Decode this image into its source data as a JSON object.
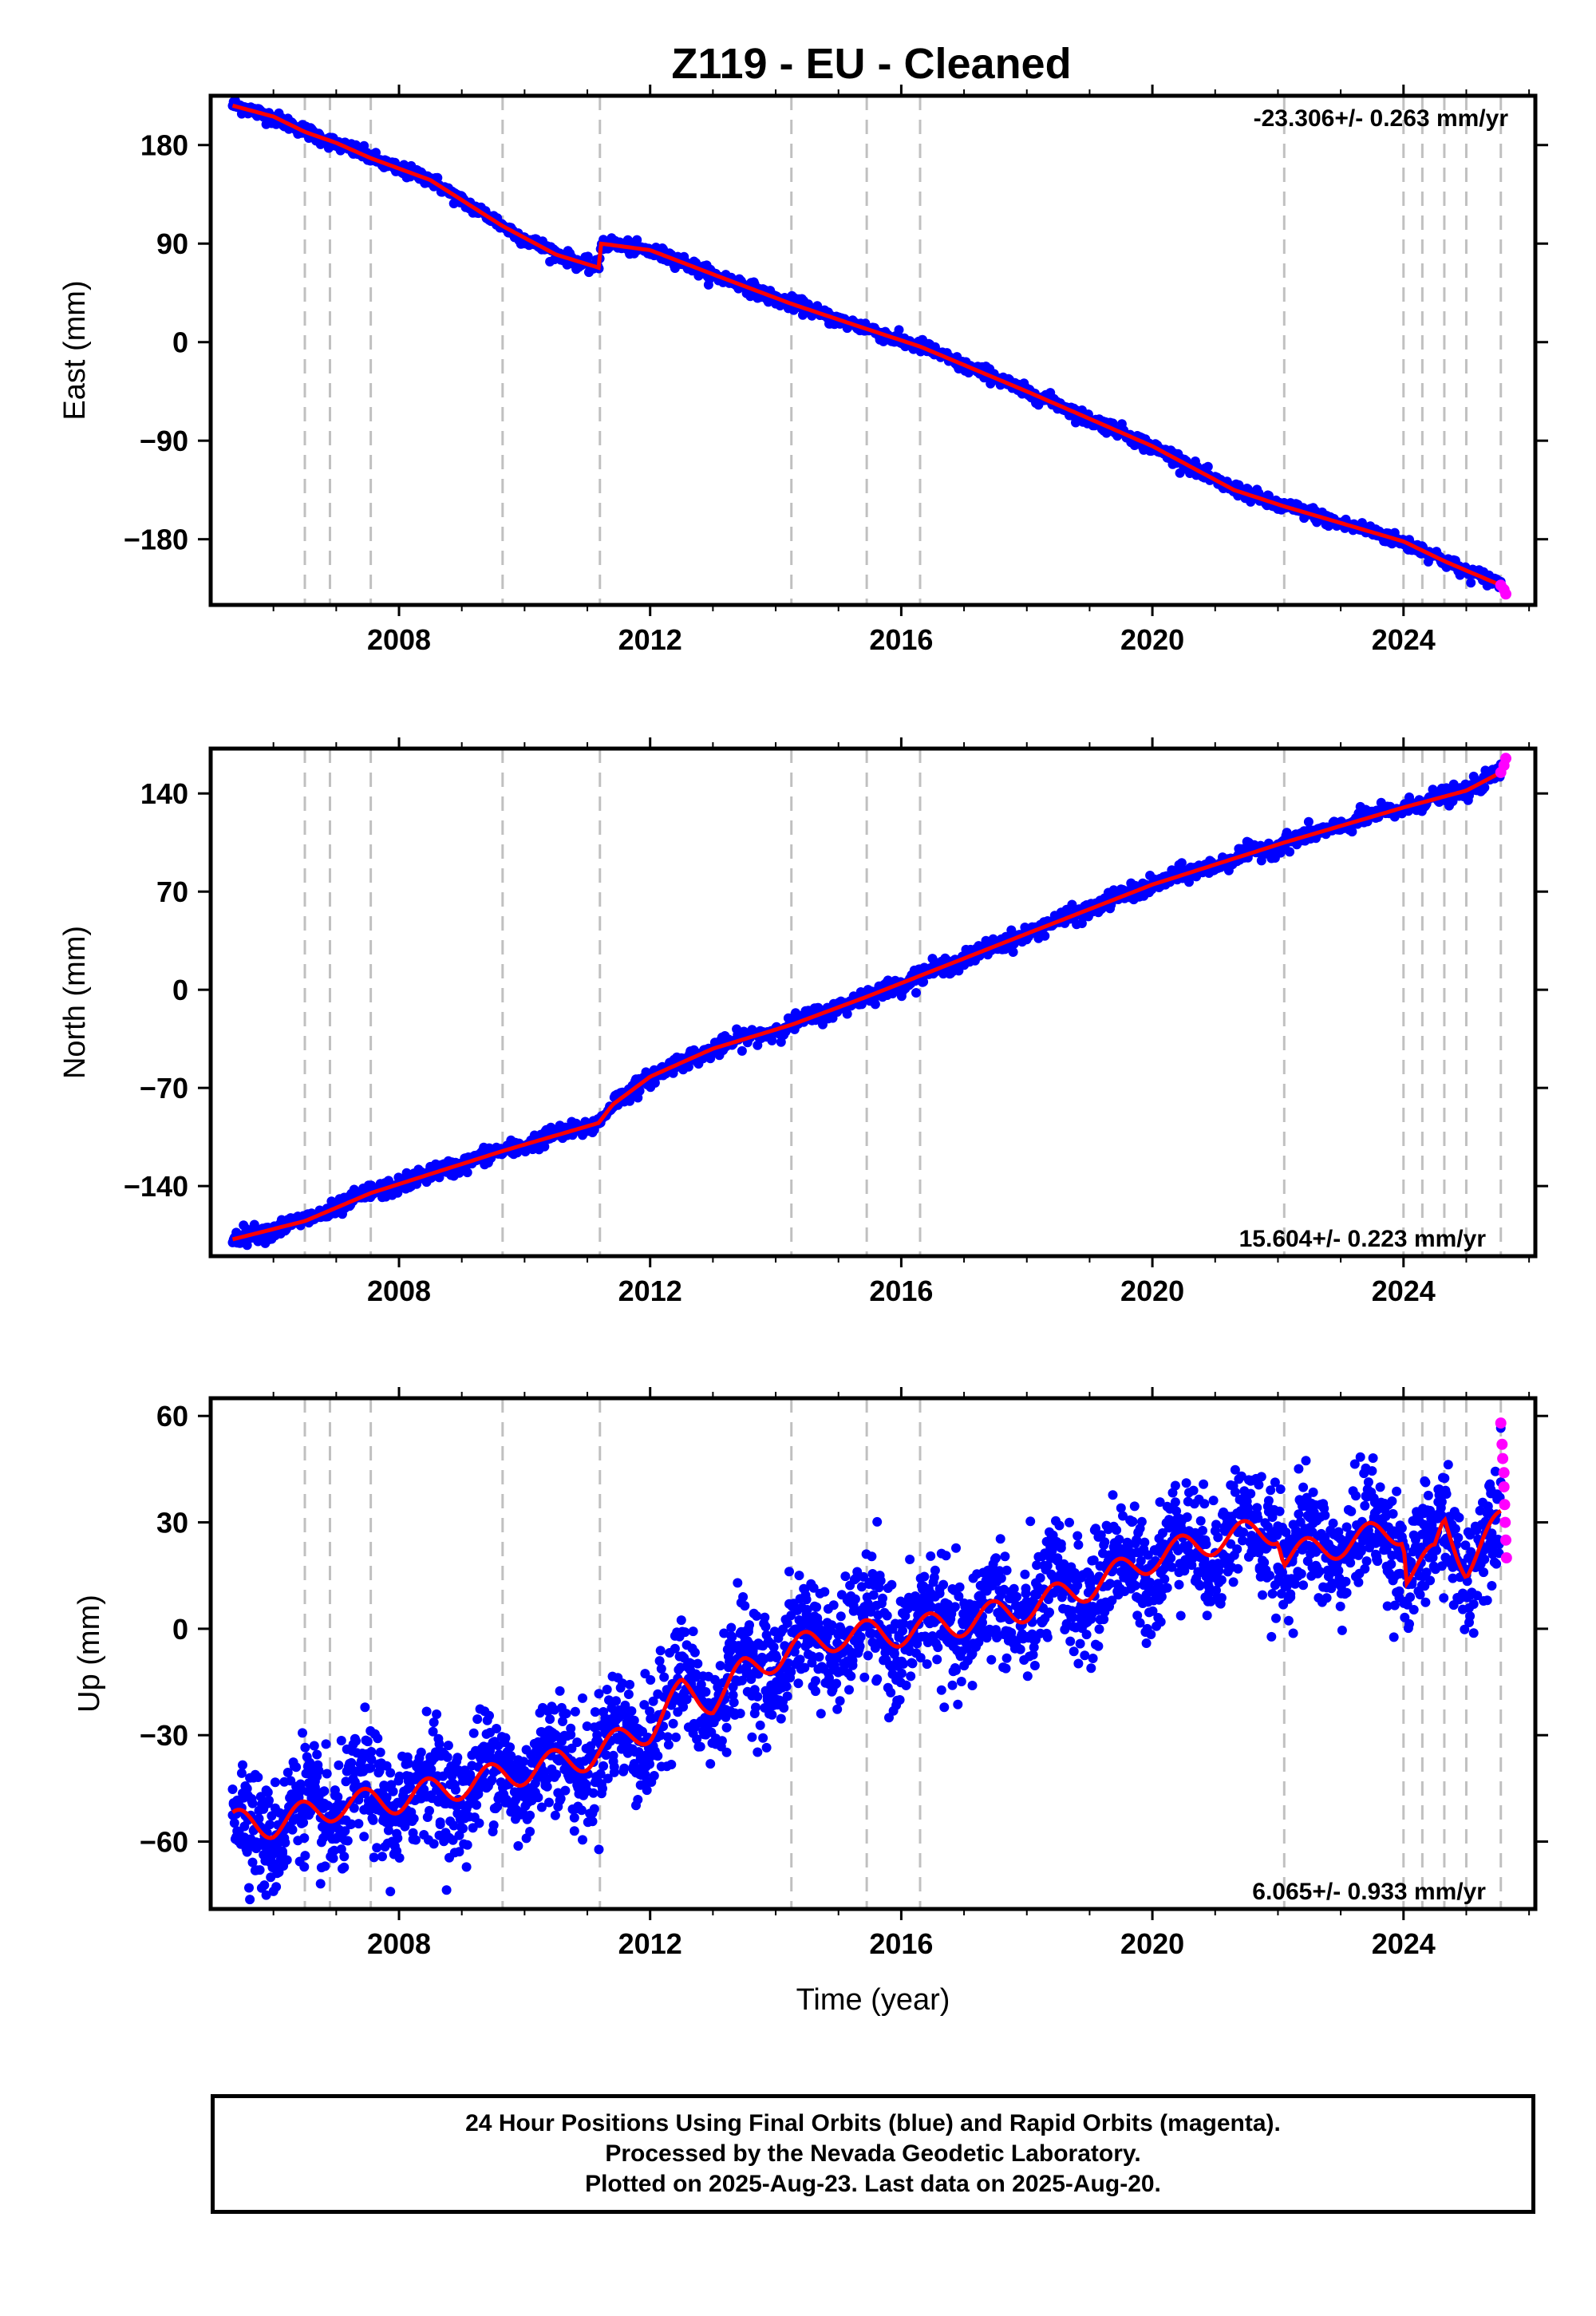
{
  "title": "Z119  - EU - Cleaned",
  "x_axis_label": "Time (year)",
  "footer": {
    "line1": "24 Hour Positions Using Final Orbits (blue) and Rapid Orbits (magenta).",
    "line2": "Processed by the Nevada Geodetic Laboratory.",
    "line3": "Plotted on 2025-Aug-23. Last data on 2025-Aug-20."
  },
  "colors": {
    "final_orbits": "#0000ff",
    "rapid_orbits": "#ff00ff",
    "model_fit": "#ff0000",
    "equipment_change_lines": "#c0c0c0"
  },
  "chart_data": [
    {
      "type": "scatter",
      "component": "East",
      "ylabel": "East (mm)",
      "xlim": [
        2005.0,
        2026.1
      ],
      "ylim": [
        -240,
        225
      ],
      "x_ticks": [
        2008,
        2012,
        2016,
        2020,
        2024
      ],
      "y_ticks": [
        180,
        90,
        0,
        -90,
        -180
      ],
      "y_tick_labels": [
        "180",
        "90",
        "0",
        "−90",
        "−180"
      ],
      "rate_text": "-23.306+/- 0.263 mm/yr",
      "rate_position": "top-right",
      "grid": false,
      "offset_epochs": [
        2006.5,
        2006.9,
        2007.55,
        2009.65,
        2011.2,
        2014.25,
        2015.45,
        2016.3,
        2022.1,
        2024.0,
        2024.3,
        2024.65,
        2025.0,
        2025.55
      ],
      "trend": {
        "start": [
          2005.35,
          216
        ],
        "end": [
          2025.6,
          -227
        ]
      },
      "fit_points": [
        [
          2005.35,
          216
        ],
        [
          2006.0,
          206
        ],
        [
          2006.5,
          192
        ],
        [
          2007.0,
          182
        ],
        [
          2007.55,
          168
        ],
        [
          2008.5,
          148
        ],
        [
          2009.65,
          106
        ],
        [
          2010.5,
          80
        ],
        [
          2011.18,
          68
        ],
        [
          2011.22,
          90
        ],
        [
          2012.0,
          84
        ],
        [
          2013.0,
          62
        ],
        [
          2014.25,
          35
        ],
        [
          2015.45,
          12
        ],
        [
          2016.3,
          -4
        ],
        [
          2018.0,
          -45
        ],
        [
          2020.0,
          -95
        ],
        [
          2021.3,
          -135
        ],
        [
          2022.1,
          -150
        ],
        [
          2024.0,
          -182
        ],
        [
          2024.65,
          -200
        ],
        [
          2025.55,
          -222
        ]
      ],
      "rapid_points": [
        [
          2025.55,
          -222
        ],
        [
          2025.6,
          -226
        ],
        [
          2025.63,
          -230
        ]
      ],
      "scatter_noise_mm": 3
    },
    {
      "type": "scatter",
      "component": "North",
      "ylabel": "North (mm)",
      "xlim": [
        2005.0,
        2026.1
      ],
      "ylim": [
        -190,
        172
      ],
      "x_ticks": [
        2008,
        2012,
        2016,
        2020,
        2024
      ],
      "y_ticks": [
        140,
        70,
        0,
        -70,
        -140
      ],
      "y_tick_labels": [
        "140",
        "70",
        "0",
        "−70",
        "−140"
      ],
      "rate_text": "15.604+/- 0.223 mm/yr",
      "rate_position": "bottom-right",
      "grid": false,
      "offset_epochs": [
        2006.5,
        2006.9,
        2007.55,
        2009.65,
        2011.2,
        2014.25,
        2015.45,
        2016.3,
        2022.1,
        2024.0,
        2024.3,
        2024.65,
        2025.0,
        2025.55
      ],
      "fit_points": [
        [
          2005.35,
          -178
        ],
        [
          2006.5,
          -165
        ],
        [
          2007.55,
          -145
        ],
        [
          2009.65,
          -115
        ],
        [
          2011.18,
          -95
        ],
        [
          2011.4,
          -82
        ],
        [
          2012.0,
          -62
        ],
        [
          2013.0,
          -42
        ],
        [
          2014.25,
          -25
        ],
        [
          2015.45,
          -5
        ],
        [
          2016.3,
          10
        ],
        [
          2018.0,
          40
        ],
        [
          2020.0,
          75
        ],
        [
          2022.1,
          105
        ],
        [
          2024.0,
          130
        ],
        [
          2025.0,
          142
        ],
        [
          2025.55,
          155
        ]
      ],
      "rapid_points": [
        [
          2025.55,
          155
        ],
        [
          2025.6,
          160
        ],
        [
          2025.63,
          165
        ]
      ],
      "scatter_noise_mm": 3
    },
    {
      "type": "scatter",
      "component": "Up",
      "ylabel": "Up (mm)",
      "xlim": [
        2005.0,
        2026.1
      ],
      "ylim": [
        -79,
        65
      ],
      "x_ticks": [
        2008,
        2012,
        2016,
        2020,
        2024
      ],
      "y_ticks": [
        60,
        30,
        0,
        -30,
        -60
      ],
      "y_tick_labels": [
        "60",
        "30",
        "0",
        "−30",
        "−60"
      ],
      "rate_text": "6.065+/- 0.933 mm/yr",
      "rate_position": "bottom-right",
      "grid": false,
      "offset_epochs": [
        2006.5,
        2006.9,
        2007.55,
        2009.65,
        2011.2,
        2014.25,
        2015.45,
        2016.3,
        2022.1,
        2024.0,
        2024.3,
        2024.65,
        2025.0,
        2025.55
      ],
      "fit_points": [
        [
          2005.35,
          -55
        ],
        [
          2006.0,
          -55
        ],
        [
          2007.0,
          -50
        ],
        [
          2008.0,
          -48
        ],
        [
          2009.0,
          -44
        ],
        [
          2010.0,
          -40
        ],
        [
          2011.0,
          -36
        ],
        [
          2012.0,
          -28
        ],
        [
          2012.5,
          -18
        ],
        [
          2013.0,
          -20
        ],
        [
          2013.5,
          -12
        ],
        [
          2014.25,
          -6
        ],
        [
          2015.0,
          -2
        ],
        [
          2016.0,
          -1
        ],
        [
          2017.0,
          2
        ],
        [
          2018.0,
          6
        ],
        [
          2019.0,
          12
        ],
        [
          2020.0,
          20
        ],
        [
          2021.0,
          25
        ],
        [
          2022.0,
          28
        ],
        [
          2022.1,
          20
        ],
        [
          2023.0,
          24
        ],
        [
          2024.0,
          28
        ],
        [
          2024.05,
          16
        ],
        [
          2024.5,
          20
        ],
        [
          2024.65,
          30
        ],
        [
          2025.0,
          18
        ],
        [
          2025.55,
          30
        ]
      ],
      "scatter_noise_mm": 8,
      "rapid_points": [
        [
          2025.55,
          58
        ],
        [
          2025.57,
          52
        ],
        [
          2025.58,
          48
        ],
        [
          2025.6,
          44
        ],
        [
          2025.6,
          40
        ],
        [
          2025.61,
          35
        ],
        [
          2025.62,
          30
        ],
        [
          2025.63,
          25
        ],
        [
          2025.64,
          20
        ]
      ]
    }
  ]
}
